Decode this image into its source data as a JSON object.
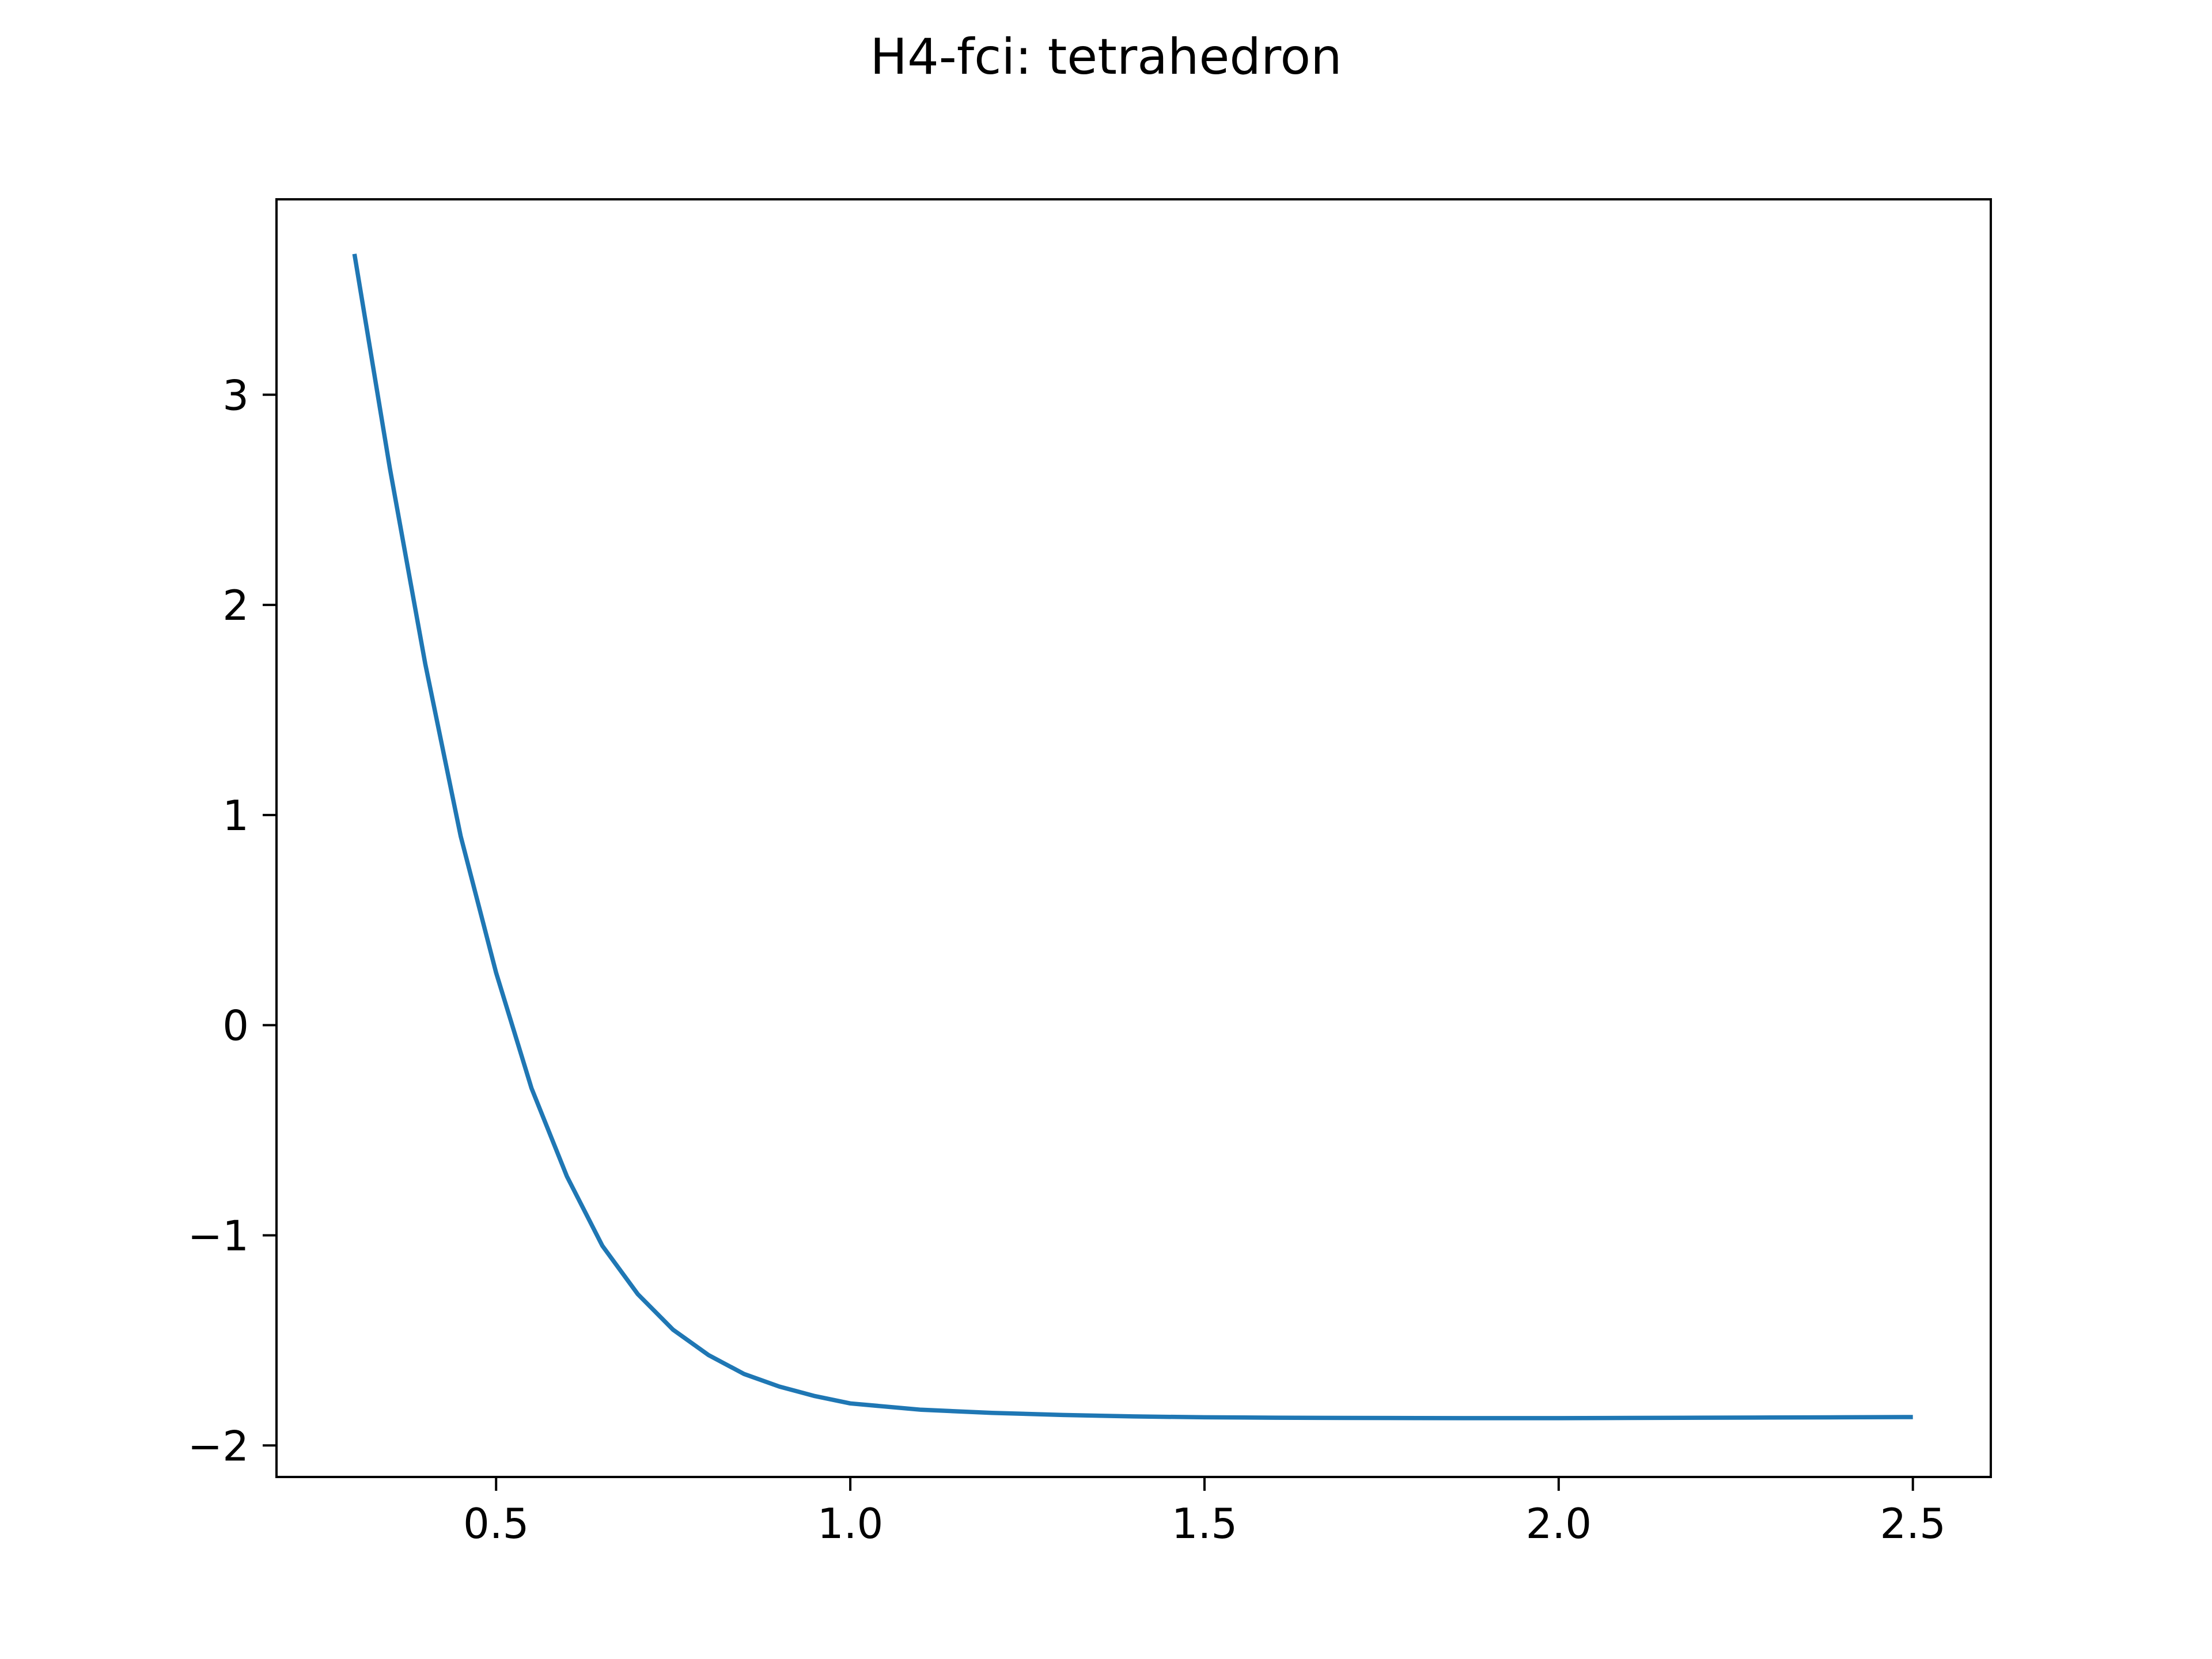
{
  "chart_data": {
    "type": "line",
    "title": "H4-fci: tetrahedron",
    "xlabel": "",
    "ylabel": "",
    "xlim": [
      0.19,
      2.61
    ],
    "ylim": [
      -2.15,
      3.93
    ],
    "grid": false,
    "xticks": [
      0.5,
      1.0,
      1.5,
      2.0,
      2.5
    ],
    "xtick_labels": [
      "0.5",
      "1.0",
      "1.5",
      "2.0",
      "2.5"
    ],
    "yticks": [
      -2,
      -1,
      0,
      1,
      2,
      3
    ],
    "ytick_labels": [
      "−2",
      "−1",
      "0",
      "1",
      "2",
      "3"
    ],
    "series": [
      {
        "color": "#1f77b4",
        "x": [
          0.3,
          0.35,
          0.4,
          0.45,
          0.5,
          0.55,
          0.6,
          0.65,
          0.7,
          0.75,
          0.8,
          0.85,
          0.9,
          0.95,
          1.0,
          1.1,
          1.2,
          1.3,
          1.4,
          1.5,
          1.6,
          1.7,
          1.8,
          1.9,
          2.0,
          2.1,
          2.2,
          2.3,
          2.4,
          2.5
        ],
        "y": [
          3.67,
          2.65,
          1.72,
          0.9,
          0.25,
          -0.3,
          -0.72,
          -1.05,
          -1.28,
          -1.45,
          -1.57,
          -1.66,
          -1.72,
          -1.765,
          -1.8,
          -1.83,
          -1.845,
          -1.855,
          -1.862,
          -1.866,
          -1.868,
          -1.869,
          -1.8695,
          -1.87,
          -1.87,
          -1.869,
          -1.868,
          -1.867,
          -1.866,
          -1.865
        ]
      }
    ]
  }
}
